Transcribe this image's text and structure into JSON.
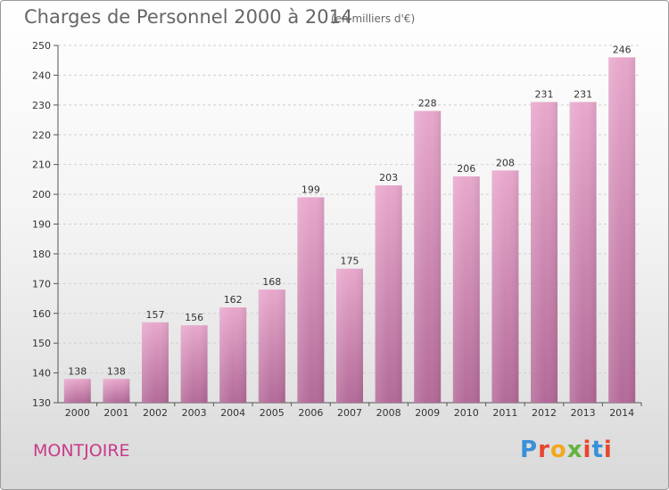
{
  "header": {
    "title": "Charges de Personnel 2000 à 2014",
    "subtitle": "(en milliers d'€)"
  },
  "footer": {
    "location": "MONTJOIRE",
    "logo": "Proxiti",
    "logo_colors": [
      "#3a8fd8",
      "#e8462e",
      "#f2a81d",
      "#63b33b",
      "#e8462e",
      "#3a8fd8",
      "#e8462e"
    ]
  },
  "chart_data": {
    "type": "bar",
    "categories": [
      "2000",
      "2001",
      "2002",
      "2003",
      "2004",
      "2005",
      "2006",
      "2007",
      "2008",
      "2009",
      "2010",
      "2011",
      "2012",
      "2013",
      "2014"
    ],
    "values": [
      138,
      138,
      157,
      156,
      162,
      168,
      199,
      175,
      203,
      228,
      206,
      208,
      231,
      231,
      246
    ],
    "ylim": [
      130,
      250
    ],
    "yticks": [
      130,
      140,
      150,
      160,
      170,
      180,
      190,
      200,
      210,
      220,
      230,
      240,
      250
    ],
    "grid": true,
    "bar_color_top": "#e8a8cc",
    "bar_color_bottom": "#b36a98"
  }
}
